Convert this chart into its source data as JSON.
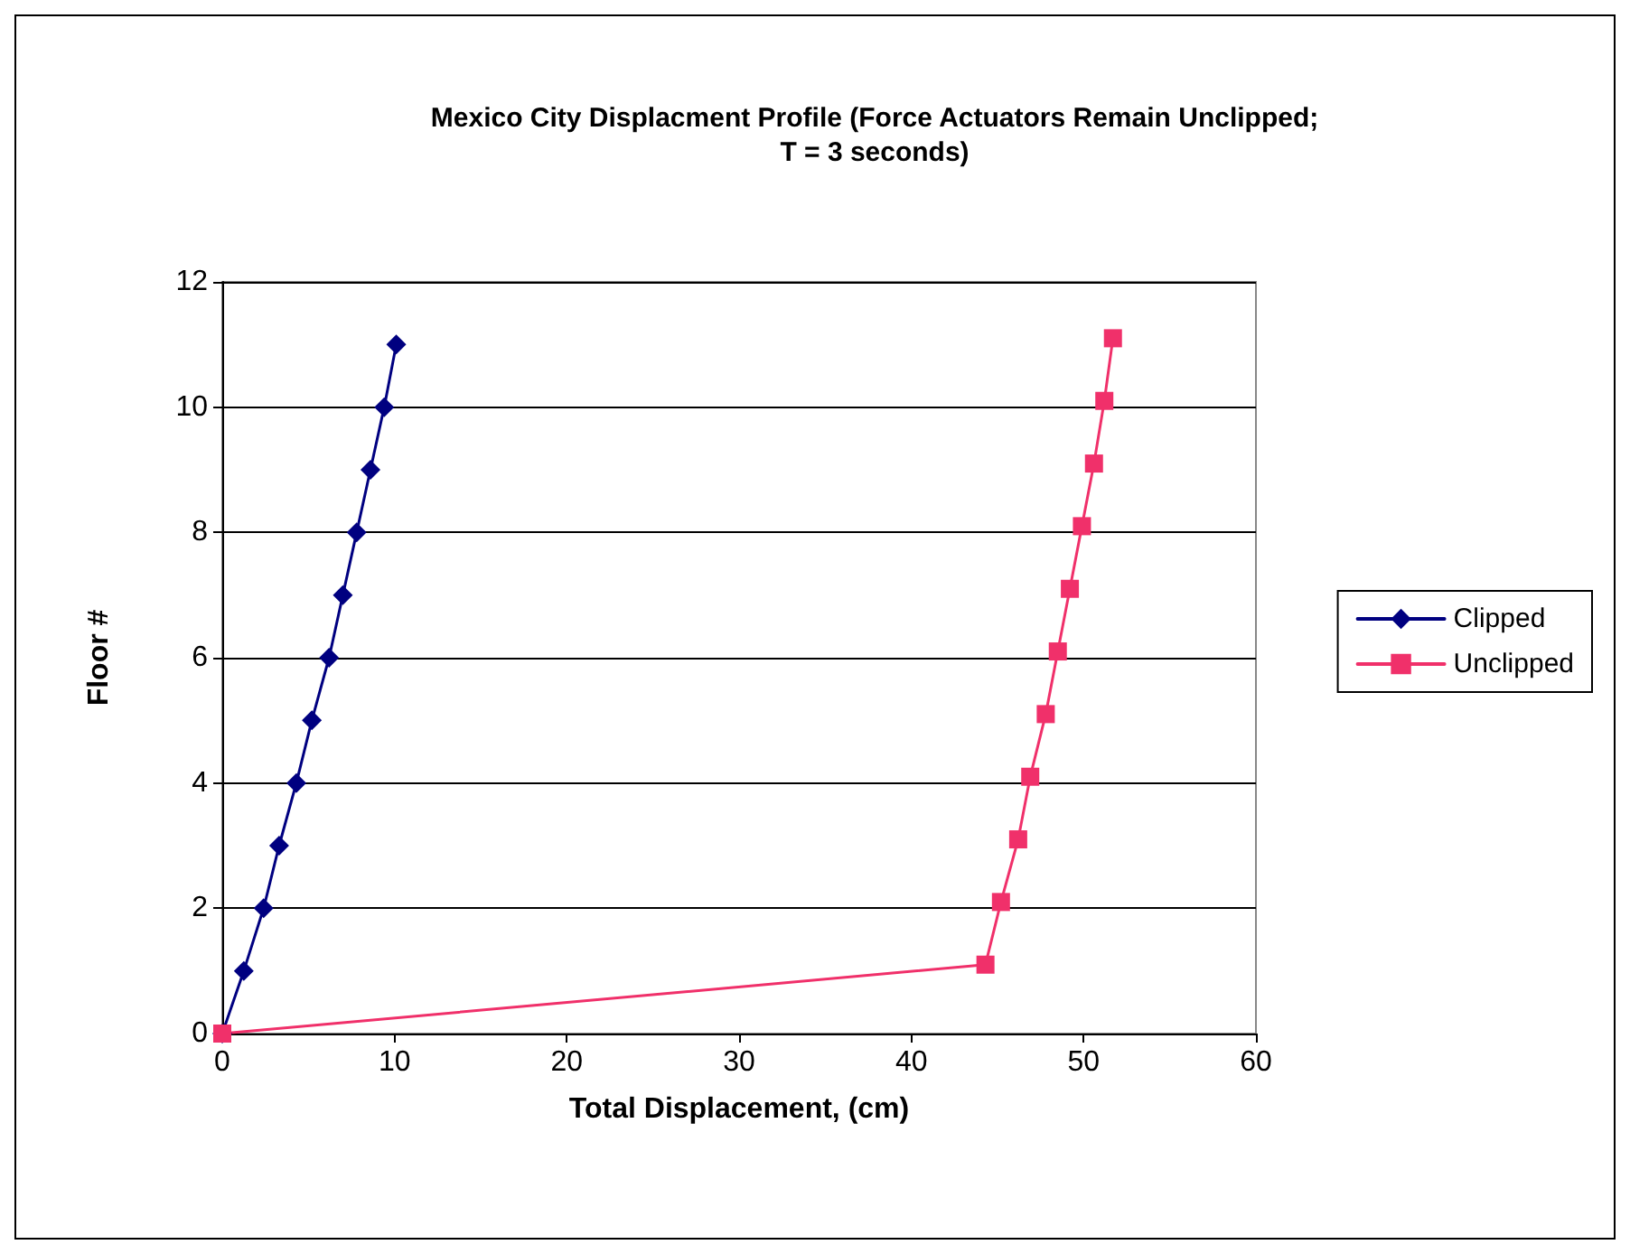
{
  "chart_data": {
    "type": "line",
    "title": "Mexico City Displacment Profile (Force Actuators Remain Unclipped;\nT = 3 seconds)",
    "xlabel": "Total Displacement, (cm)",
    "ylabel": "Floor #",
    "series": [
      {
        "name": "Clipped",
        "color": "#000080",
        "marker": "diamond",
        "x": [
          0,
          1.25,
          2.4,
          3.3,
          4.3,
          5.2,
          6.2,
          7.0,
          7.8,
          8.6,
          9.4,
          10.1
        ],
        "values": [
          0,
          1,
          2,
          3,
          4,
          5,
          6,
          7,
          8,
          9,
          10,
          11
        ]
      },
      {
        "name": "Unclipped",
        "color": "#f0306a",
        "marker": "square",
        "x": [
          0,
          44.3,
          45.2,
          46.2,
          46.9,
          47.8,
          48.5,
          49.2,
          49.9,
          50.6,
          51.2,
          51.7
        ],
        "values": [
          0,
          1.1,
          2.1,
          3.1,
          4.1,
          5.1,
          6.1,
          7.1,
          8.1,
          9.1,
          10.1,
          11.1
        ]
      }
    ],
    "xlim": [
      0,
      60
    ],
    "xticks": [
      0,
      10,
      20,
      30,
      40,
      50,
      60
    ],
    "ylim": [
      0,
      12
    ],
    "yticks": [
      0,
      2,
      4,
      6,
      8,
      10,
      12
    ],
    "grid": "y",
    "legend": "right",
    "line_style": "solid"
  }
}
